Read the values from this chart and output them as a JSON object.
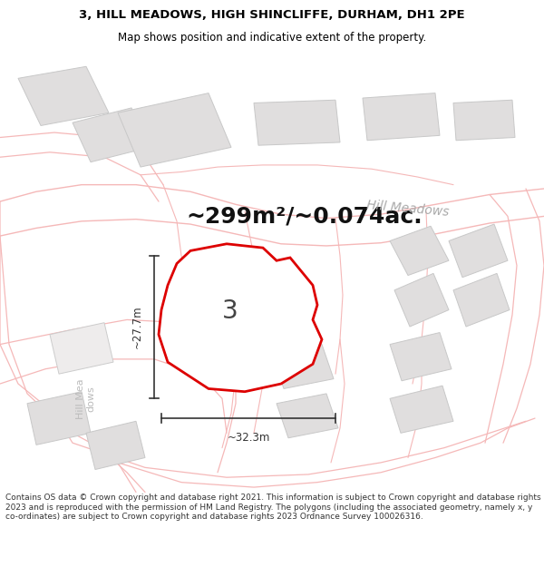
{
  "title_line1": "3, HILL MEADOWS, HIGH SHINCLIFFE, DURHAM, DH1 2PE",
  "title_line2": "Map shows position and indicative extent of the property.",
  "area_text": "~299m²/~0.074ac.",
  "dim_horizontal": "~32.3m",
  "dim_vertical": "~27.7m",
  "plot_label": "3",
  "road_label": "Hill Meadows",
  "footer_text": "Contains OS data © Crown copyright and database right 2021. This information is subject to Crown copyright and database rights 2023 and is reproduced with the permission of HM Land Registry. The polygons (including the associated geometry, namely x, y co-ordinates) are subject to Crown copyright and database rights 2023 Ordnance Survey 100026316.",
  "bg_color": "#ffffff",
  "map_bg": "#f8f7f7",
  "plot_fill": "#ffffff",
  "plot_edge": "#dd0000",
  "building_fill": "#e0dede",
  "building_edge": "#c8c8c8",
  "road_line_color": "#f5b8b8",
  "dim_color": "#333333",
  "title_color": "#000000",
  "road_label_color": "#aaaaaa",
  "title_fontsize": 9.5,
  "subtitle_fontsize": 8.5,
  "area_fontsize": 18,
  "plot_label_fontsize": 20,
  "dim_fontsize": 8.5,
  "road_label_fontsize": 10
}
